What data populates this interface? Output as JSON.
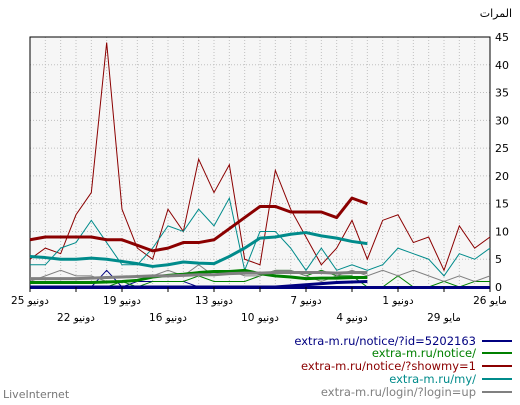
{
  "colors": {
    "grid": "#c0c0c0",
    "plot_bg": "#f6f6f6",
    "axis": "#000000",
    "dark_band": "#000080"
  },
  "footer": {
    "brand": "LiveInternet"
  },
  "chart_data": {
    "type": "line",
    "ylabel": "المرات",
    "ylim": [
      0,
      45
    ],
    "y_ticks": [
      0,
      5,
      10,
      15,
      20,
      25,
      30,
      35,
      40,
      45
    ],
    "x_labels_upper": [
      "25 دونيو",
      "19 دونيو",
      "13 دونيو",
      "7 دونيو",
      "1 دونيو",
      "26 مايو"
    ],
    "x_labels_lower": [
      "22 دونيو",
      "16 دونيو",
      "10 دونيو",
      "4 دونيو",
      "29 مايو"
    ],
    "x_days": 31,
    "smoothed_until_index": 22,
    "series": [
      {
        "name": "extra-m.ru/notice/?id=5202163",
        "color": "#000080",
        "values": [
          0,
          0,
          0,
          0,
          0,
          0,
          0,
          0,
          0,
          0,
          0,
          0,
          0,
          0,
          0,
          0,
          0,
          0,
          0,
          0,
          1,
          1,
          1,
          1,
          0,
          3,
          0,
          0,
          0,
          0,
          0
        ],
        "smooth": [
          0,
          0,
          0,
          0,
          0,
          0,
          0,
          0,
          0,
          0,
          0,
          0,
          0,
          0,
          0,
          0,
          0,
          0.2,
          0.4,
          0.6,
          0.8,
          0.9,
          1
        ]
      },
      {
        "name": "extra-m.ru/notice/",
        "color": "#008000",
        "values": [
          1,
          1,
          0,
          1,
          0,
          0,
          2,
          0,
          0,
          2,
          2,
          3,
          2,
          3,
          3,
          2,
          1,
          1,
          1,
          2,
          1,
          1,
          1,
          0,
          1,
          0,
          0,
          0,
          0,
          0,
          0
        ],
        "smooth": [
          0.8,
          0.8,
          0.8,
          0.8,
          0.8,
          0.9,
          1.0,
          1.2,
          1.8,
          2.1,
          2.3,
          2.6,
          2.8,
          2.8,
          3.0,
          2.4,
          2.0,
          1.8,
          1.5,
          1.6,
          1.6,
          1.7,
          1.7
        ]
      },
      {
        "name": "extra-m.ru/notice/?showmy=1",
        "color": "#8b0000",
        "values": [
          9,
          7,
          11,
          3,
          9,
          8,
          13,
          12,
          5,
          12,
          7,
          4,
          9,
          14,
          21,
          4,
          5,
          22,
          17,
          23,
          10,
          14,
          5,
          7,
          14,
          44,
          17,
          13,
          6,
          7,
          5
        ],
        "smooth": [
          8.5,
          9,
          9,
          9,
          9,
          8.5,
          8.5,
          7.5,
          6.5,
          7,
          8,
          8,
          8.5,
          10.5,
          12.5,
          14.5,
          14.5,
          13.5,
          13.5,
          13.5,
          12.5,
          16,
          15
        ]
      },
      {
        "name": "extra-m.ru/my/",
        "color": "#008b8b",
        "values": [
          7,
          5,
          6,
          2,
          5,
          6,
          7,
          4,
          3,
          4,
          3,
          7,
          3,
          7,
          10,
          10,
          3,
          16,
          11,
          14,
          10,
          11,
          7,
          4,
          4,
          8,
          12,
          8,
          7,
          4,
          4
        ],
        "smooth": [
          5.5,
          5.3,
          5,
          5,
          5.2,
          5,
          4.6,
          4.2,
          3.7,
          4,
          4.5,
          4.3,
          4.2,
          5.5,
          7,
          8.8,
          9,
          9.5,
          9.8,
          9.2,
          8.8,
          8.2,
          7.8
        ]
      },
      {
        "name": "extra-m.ru/login/?login=up",
        "color": "#808080",
        "values": [
          2,
          1,
          2,
          1,
          2,
          3,
          2,
          3,
          2,
          3,
          2,
          1,
          2,
          3,
          3,
          2,
          2,
          3,
          2,
          4,
          2,
          3,
          2,
          1,
          1,
          1,
          2,
          2,
          3,
          2,
          1
        ],
        "smooth": [
          1.5,
          1.5,
          1.5,
          1.5,
          1.6,
          1.7,
          1.8,
          1.9,
          2.0,
          2.0,
          2.1,
          2.2,
          2.2,
          2.4,
          2.5,
          2.5,
          2.6,
          2.6,
          2.6,
          2.6,
          2.5,
          2.6,
          2.6
        ]
      }
    ]
  }
}
